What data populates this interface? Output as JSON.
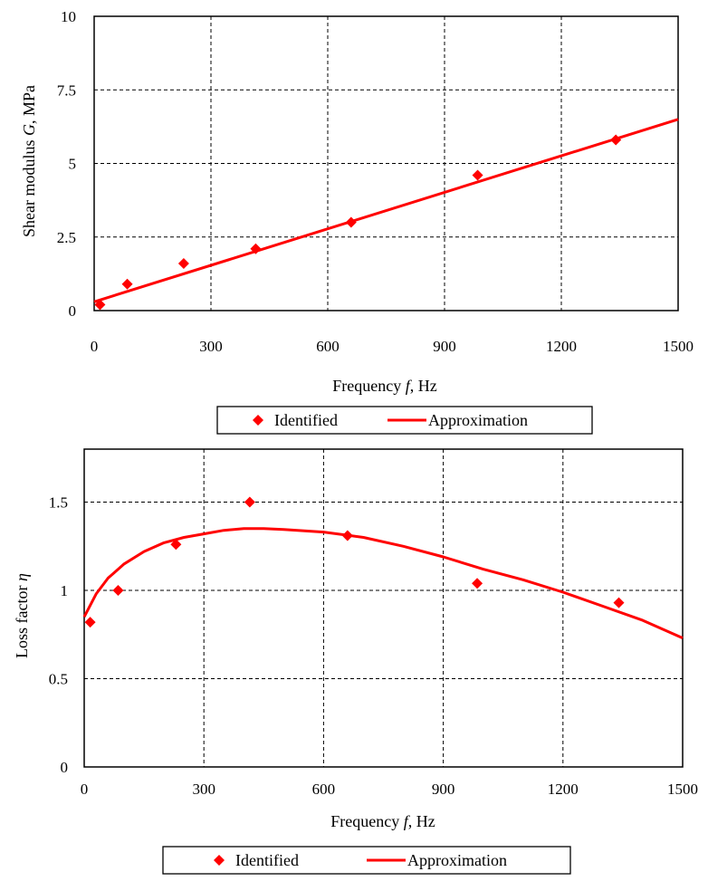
{
  "chart_data": [
    {
      "type": "scatter",
      "xlabel": {
        "pre": "Frequency",
        "var": "f",
        "post": ", Hz"
      },
      "ylabel": {
        "pre": "Shear modulus",
        "var": "G",
        "post": ", MPa"
      },
      "xlim": [
        0,
        1500
      ],
      "ylim": [
        0,
        10
      ],
      "xticks": [
        0,
        300,
        600,
        900,
        1200,
        1500
      ],
      "yticks": [
        0,
        2.5,
        5,
        7.5,
        10
      ],
      "ytick_labels": [
        "0",
        "2.5",
        "5",
        "7.5",
        "10"
      ],
      "grid": true,
      "legend_position": "bottom-center",
      "series": [
        {
          "name": "Identified",
          "kind": "markers",
          "color": "#ff0000",
          "x": [
            15,
            85,
            230,
            415,
            660,
            985,
            1340
          ],
          "y": [
            0.2,
            0.9,
            1.6,
            2.1,
            3.0,
            4.6,
            5.8
          ]
        },
        {
          "name": "Approximation",
          "kind": "line",
          "color": "#ff0000",
          "x": [
            0,
            1500
          ],
          "y": [
            0.3,
            6.5
          ]
        }
      ]
    },
    {
      "type": "scatter",
      "xlabel": {
        "pre": "Frequency",
        "var": "f",
        "post": ", Hz"
      },
      "ylabel": {
        "pre": "Loss factor",
        "var": "η",
        "post": ""
      },
      "xlim": [
        0,
        1500
      ],
      "ylim": [
        0,
        1.8
      ],
      "xticks": [
        0,
        300,
        600,
        900,
        1200,
        1500
      ],
      "yticks": [
        0,
        0.5,
        1,
        1.5
      ],
      "ytick_labels": [
        "0",
        "0.5",
        "1",
        "1.5"
      ],
      "grid": true,
      "legend_position": "bottom-center",
      "series": [
        {
          "name": "Identified",
          "kind": "markers",
          "color": "#ff0000",
          "x": [
            15,
            85,
            230,
            415,
            660,
            985,
            1340
          ],
          "y": [
            0.82,
            1.0,
            1.26,
            1.5,
            1.31,
            1.04,
            0.93
          ]
        },
        {
          "name": "Approximation",
          "kind": "line",
          "color": "#ff0000",
          "x": [
            0,
            30,
            60,
            100,
            150,
            200,
            250,
            300,
            350,
            400,
            450,
            500,
            600,
            700,
            800,
            900,
            1000,
            1100,
            1200,
            1300,
            1400,
            1500
          ],
          "y": [
            0.85,
            0.98,
            1.07,
            1.15,
            1.22,
            1.27,
            1.3,
            1.32,
            1.34,
            1.35,
            1.35,
            1.345,
            1.33,
            1.3,
            1.25,
            1.19,
            1.12,
            1.06,
            0.99,
            0.91,
            0.83,
            0.73
          ]
        }
      ]
    }
  ]
}
